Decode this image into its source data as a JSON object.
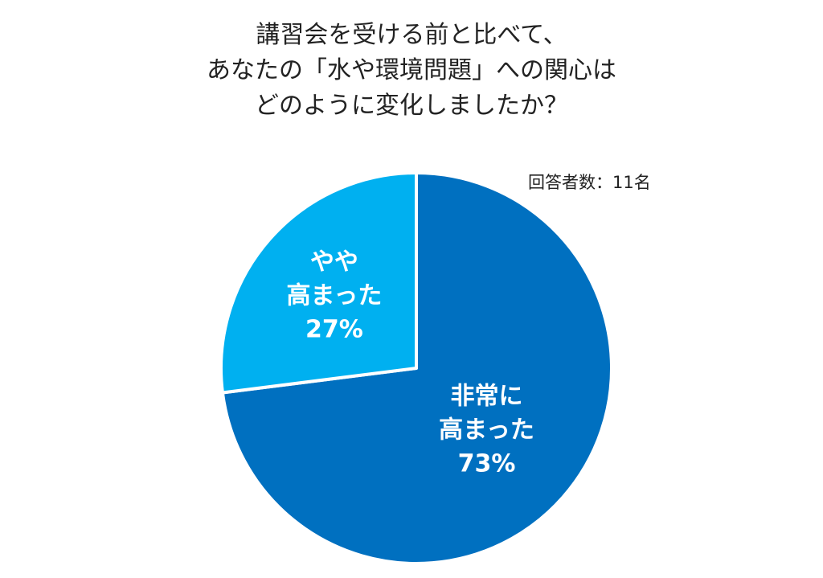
{
  "chart_data": {
    "type": "pie",
    "title_lines": [
      "講習会を受ける前と比べて、",
      "あなたの「水や環境問題」への関心は",
      "どのように変化しましたか？"
    ],
    "annotation": "回答者数：11名",
    "slices": [
      {
        "label_lines": [
          "非常に",
          "高まった"
        ],
        "value": 73,
        "value_label": "73%",
        "color": "#0070c0"
      },
      {
        "label_lines": [
          "やや",
          "高まった"
        ],
        "value": 27,
        "value_label": "27%",
        "color": "#00b0f0"
      }
    ],
    "start": "12 o'clock",
    "direction": "clockwise",
    "separator_color": "#ffffff",
    "legend": "none"
  }
}
